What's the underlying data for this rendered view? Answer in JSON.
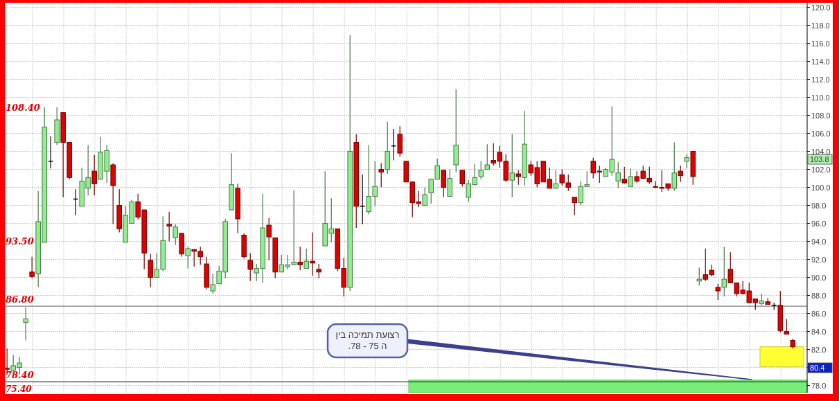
{
  "chart_data": {
    "type": "candlestick",
    "categories": [
      null,
      null,
      null,
      null,
      null,
      null,
      null,
      null,
      null,
      null,
      null,
      null,
      null,
      null,
      null,
      null,
      null,
      null,
      null,
      null,
      null,
      null,
      null,
      null,
      null,
      null,
      null,
      null,
      null,
      null,
      null,
      null,
      null,
      null,
      null,
      null,
      null,
      null,
      null,
      null,
      null,
      null,
      null,
      null,
      null,
      null,
      null,
      null,
      null,
      null,
      null,
      null,
      null,
      null,
      null,
      null,
      null,
      null,
      null,
      null,
      null,
      null,
      null,
      null,
      null,
      null,
      null,
      null,
      null,
      null,
      null,
      null,
      null,
      null,
      null,
      null,
      null,
      null,
      null,
      null,
      null,
      null,
      null,
      null,
      null,
      null,
      null,
      null,
      null,
      null,
      null,
      null,
      null,
      null,
      null,
      null,
      null,
      null,
      null,
      null,
      null,
      null,
      null,
      null,
      null,
      null,
      null,
      null,
      null,
      null,
      null,
      null,
      null,
      null,
      null,
      null,
      null,
      null,
      null,
      null,
      null,
      null,
      null,
      null,
      null,
      null,
      null
    ],
    "ohlc": [
      [
        79.9,
        82.1,
        79.2,
        79.8
      ],
      [
        79.7,
        81.4,
        79.2,
        80.2
      ],
      [
        80.0,
        81.2,
        79.2,
        80.5
      ],
      [
        85.0,
        86.7,
        83.0,
        85.4
      ],
      [
        90.6,
        92.3,
        89.9,
        90.1
      ],
      [
        90.4,
        99.6,
        88.9,
        96.2
      ],
      [
        93.9,
        108.9,
        93.9,
        106.7
      ],
      [
        102.9,
        105.7,
        102.1,
        102.9
      ],
      [
        105.0,
        108.9,
        104.7,
        107.5
      ],
      [
        108.3,
        108.3,
        98.9,
        105.0
      ],
      [
        105.0,
        105.0,
        100.9,
        101.1
      ],
      [
        98.7,
        99.8,
        96.9,
        98.7
      ],
      [
        97.9,
        102.2,
        97.9,
        100.7
      ],
      [
        99.9,
        104.7,
        99.1,
        101.1
      ],
      [
        101.8,
        103.6,
        99.1,
        100.4
      ],
      [
        100.9,
        105.6,
        100.9,
        103.9
      ],
      [
        101.8,
        104.7,
        100.5,
        104.1
      ],
      [
        102.5,
        102.7,
        95.9,
        100.2
      ],
      [
        98.0,
        99.8,
        95.0,
        95.4
      ],
      [
        93.9,
        97.9,
        93.9,
        96.9
      ],
      [
        96.0,
        98.6,
        96.0,
        98.4
      ],
      [
        98.4,
        99.3,
        96.4,
        96.7
      ],
      [
        97.5,
        97.5,
        90.9,
        92.7
      ],
      [
        91.9,
        92.6,
        88.9,
        90.0
      ],
      [
        90.0,
        92.7,
        90.0,
        90.9
      ],
      [
        90.9,
        96.8,
        90.7,
        94.1
      ],
      [
        95.9,
        97.3,
        94.0,
        95.7
      ],
      [
        94.4,
        95.9,
        93.6,
        95.6
      ],
      [
        94.9,
        94.9,
        92.3,
        92.6
      ],
      [
        92.4,
        93.4,
        91.0,
        93.2
      ],
      [
        93.1,
        93.1,
        91.2,
        92.9
      ],
      [
        92.9,
        93.4,
        91.4,
        92.3
      ],
      [
        91.5,
        92.3,
        88.7,
        88.9
      ],
      [
        88.5,
        90.4,
        88.2,
        89.2
      ],
      [
        89.3,
        91.3,
        89.3,
        90.7
      ],
      [
        90.6,
        96.5,
        89.9,
        96.2
      ],
      [
        97.5,
        103.8,
        97.5,
        100.3
      ],
      [
        99.9,
        100.4,
        94.9,
        96.5
      ],
      [
        94.7,
        94.9,
        92.1,
        92.3
      ],
      [
        91.9,
        92.7,
        89.6,
        90.9
      ],
      [
        90.5,
        91.5,
        89.6,
        91.0
      ],
      [
        91.0,
        99.3,
        89.4,
        95.5
      ],
      [
        95.8,
        96.6,
        91.9,
        94.5
      ],
      [
        94.4,
        94.4,
        89.9,
        90.6
      ],
      [
        90.6,
        92.5,
        90.6,
        91.4
      ],
      [
        91.2,
        92.5,
        90.9,
        91.4
      ],
      [
        91.4,
        99.7,
        91.4,
        91.7
      ],
      [
        91.7,
        93.4,
        90.8,
        91.4
      ],
      [
        91.0,
        93.2,
        91.0,
        91.8
      ],
      [
        91.8,
        95.0,
        90.2,
        91.6
      ],
      [
        90.9,
        91.5,
        89.9,
        90.6
      ],
      [
        93.5,
        101.8,
        93.5,
        96.0
      ],
      [
        94.9,
        98.8,
        93.9,
        95.4
      ],
      [
        95.4,
        95.4,
        90.7,
        91.0
      ],
      [
        91.0,
        92.2,
        87.9,
        88.9
      ],
      [
        88.9,
        116.9,
        88.5,
        104.0
      ],
      [
        105.0,
        105.9,
        95.5,
        97.9
      ],
      [
        97.9,
        101.4,
        95.9,
        97.9
      ],
      [
        97.3,
        104.7,
        97.0,
        99.0
      ],
      [
        99.0,
        102.9,
        97.9,
        100.1
      ],
      [
        102.0,
        102.7,
        100.0,
        101.7
      ],
      [
        102.0,
        107.3,
        101.5,
        104.0
      ],
      [
        104.6,
        106.5,
        103.0,
        104.6
      ],
      [
        105.9,
        106.8,
        103.4,
        103.8
      ],
      [
        102.9,
        102.9,
        100.6,
        100.6
      ],
      [
        100.6,
        100.6,
        96.7,
        98.3
      ],
      [
        98.4,
        99.6,
        97.8,
        98.2
      ],
      [
        98.0,
        100.0,
        98.0,
        99.2
      ],
      [
        99.4,
        100.9,
        98.2,
        100.9
      ],
      [
        100.9,
        103.2,
        100.9,
        102.4
      ],
      [
        101.9,
        101.9,
        98.9,
        100.0
      ],
      [
        99.0,
        102.0,
        99.0,
        101.0
      ],
      [
        102.5,
        110.9,
        101.7,
        104.7
      ],
      [
        101.9,
        101.9,
        100.1,
        100.4
      ],
      [
        98.9,
        100.8,
        98.4,
        100.4
      ],
      [
        100.3,
        102.6,
        100.2,
        101.1
      ],
      [
        101.2,
        102.9,
        100.9,
        101.9
      ],
      [
        102.0,
        104.8,
        102.0,
        102.5
      ],
      [
        103.0,
        104.9,
        102.4,
        102.7
      ],
      [
        103.9,
        104.6,
        102.2,
        102.9
      ],
      [
        102.9,
        103.7,
        100.6,
        100.8
      ],
      [
        100.8,
        105.9,
        98.9,
        101.6
      ],
      [
        101.5,
        101.9,
        100.3,
        101.2
      ],
      [
        101.1,
        108.5,
        100.2,
        104.8
      ],
      [
        102.5,
        102.9,
        101.3,
        101.6
      ],
      [
        102.2,
        102.9,
        100.0,
        100.4
      ],
      [
        102.9,
        102.9,
        100.6,
        100.6
      ],
      [
        100.9,
        102.2,
        99.9,
        99.9
      ],
      [
        99.9,
        101.9,
        99.9,
        100.4
      ],
      [
        101.4,
        102.0,
        100.2,
        100.5
      ],
      [
        100.5,
        101.4,
        99.6,
        100.0
      ],
      [
        98.9,
        98.9,
        96.9,
        98.3
      ],
      [
        98.3,
        100.7,
        98.0,
        100.1
      ],
      [
        100.1,
        101.8,
        100.1,
        100.3
      ],
      [
        102.9,
        103.3,
        101.0,
        101.6
      ],
      [
        101.8,
        102.4,
        100.5,
        101.7
      ],
      [
        101.2,
        102.2,
        101.2,
        102.0
      ],
      [
        101.7,
        109.0,
        101.3,
        103.1
      ],
      [
        100.7,
        102.8,
        99.9,
        101.6
      ],
      [
        100.9,
        102.3,
        100.4,
        100.5
      ],
      [
        100.1,
        102.1,
        100.1,
        101.2
      ],
      [
        101.2,
        101.8,
        100.5,
        100.7
      ],
      [
        101.8,
        102.4,
        100.9,
        101.0
      ],
      [
        101.0,
        102.3,
        100.4,
        100.6
      ],
      [
        100.1,
        100.7,
        99.9,
        100.0
      ],
      [
        100.0,
        101.9,
        99.5,
        99.9
      ],
      [
        100.4,
        100.4,
        99.6,
        99.9
      ],
      [
        99.9,
        105.0,
        99.6,
        101.6
      ],
      [
        101.8,
        102.4,
        100.6,
        101.3
      ],
      [
        102.9,
        103.7,
        102.1,
        103.3
      ],
      [
        104.0,
        104.0,
        100.3,
        101.2
      ],
      [
        89.6,
        91.1,
        89.1,
        89.8
      ],
      [
        90.3,
        93.2,
        89.6,
        89.8
      ],
      [
        90.8,
        91.4,
        90.1,
        90.3
      ],
      [
        88.9,
        89.3,
        87.5,
        88.5
      ],
      [
        88.9,
        93.4,
        87.9,
        89.8
      ],
      [
        90.9,
        92.8,
        89.4,
        89.4
      ],
      [
        89.4,
        89.4,
        87.9,
        88.2
      ],
      [
        88.6,
        89.6,
        88.1,
        88.2
      ],
      [
        88.5,
        89.4,
        87.1,
        87.2
      ],
      [
        87.6,
        87.6,
        86.4,
        87.2
      ],
      [
        87.1,
        88.2,
        86.9,
        87.4
      ],
      [
        87.3,
        87.7,
        87.0,
        87.0
      ],
      [
        86.9,
        87.2,
        86.4,
        86.9
      ],
      [
        86.9,
        88.5,
        83.9,
        84.1
      ],
      [
        84.0,
        85.4,
        83.7,
        83.7
      ],
      [
        83.0,
        83.2,
        82.1,
        82.3
      ]
    ],
    "colors": [
      "#e00000",
      "#90ee90",
      "#90ee90",
      "#90ee90",
      "#e00000",
      "#90ee90",
      "#90ee90",
      "#000000",
      "#90ee90",
      "#e00000",
      "#e00000",
      "#000000",
      "#90ee90",
      "#90ee90",
      "#e00000",
      "#90ee90",
      "#90ee90",
      "#e00000",
      "#e00000",
      "#90ee90",
      "#90ee90",
      "#e00000",
      "#e00000",
      "#e00000",
      "#90ee90",
      "#90ee90",
      "#e00000",
      "#90ee90",
      "#e00000",
      "#90ee90",
      "#e00000",
      "#e00000",
      "#e00000",
      "#90ee90",
      "#90ee90",
      "#90ee90",
      "#90ee90",
      "#e00000",
      "#e00000",
      "#e00000",
      "#90ee90",
      "#90ee90",
      "#e00000",
      "#e00000",
      "#90ee90",
      "#90ee90",
      "#90ee90",
      "#e00000",
      "#90ee90",
      "#e00000",
      "#e00000",
      "#90ee90",
      "#90ee90",
      "#e00000",
      "#e00000",
      "#90ee90",
      "#e00000",
      "#000000",
      "#90ee90",
      "#90ee90",
      "#e00000",
      "#90ee90",
      "#000000",
      "#e00000",
      "#e00000",
      "#e00000",
      "#e00000",
      "#90ee90",
      "#90ee90",
      "#90ee90",
      "#e00000",
      "#90ee90",
      "#90ee90",
      "#e00000",
      "#90ee90",
      "#90ee90",
      "#90ee90",
      "#90ee90",
      "#e00000",
      "#e00000",
      "#e00000",
      "#90ee90",
      "#e00000",
      "#90ee90",
      "#e00000",
      "#e00000",
      "#e00000",
      "#e00000",
      "#90ee90",
      "#e00000",
      "#e00000",
      "#e00000",
      "#90ee90",
      "#90ee90",
      "#e00000",
      "#e00000",
      "#90ee90",
      "#90ee90",
      "#90ee90",
      "#e00000",
      "#90ee90",
      "#e00000",
      "#e00000",
      "#e00000",
      "#e00000",
      "#e00000",
      "#e00000",
      "#90ee90",
      "#e00000",
      "#90ee90",
      "#e00000",
      "#90ee90",
      "#e00000",
      "#e00000",
      "#e00000",
      "#90ee90",
      "#e00000",
      "#e00000",
      "#e00000",
      "#e00000",
      "#e00000",
      "#90ee90",
      "#e00000",
      "#000000",
      "#e00000",
      "#e00000",
      "#e00000"
    ],
    "ylim": [
      77.2,
      120.5
    ],
    "yticks": [
      {
        "value": 78,
        "label": "78.0"
      },
      {
        "value": 80,
        "label": null
      },
      {
        "value": 82,
        "label": "82.0"
      },
      {
        "value": 84,
        "label": "84.0"
      },
      {
        "value": 86,
        "label": "86.0"
      },
      {
        "value": 88,
        "label": "88.0"
      },
      {
        "value": 90,
        "label": "90.0"
      },
      {
        "value": 92,
        "label": "92.0"
      },
      {
        "value": 94,
        "label": "94.0"
      },
      {
        "value": 96,
        "label": "96.0"
      },
      {
        "value": 98,
        "label": "98.0"
      },
      {
        "value": 100,
        "label": "100.0"
      },
      {
        "value": 102,
        "label": "102.0"
      },
      {
        "value": 104,
        "label": "104.0"
      },
      {
        "value": 106,
        "label": "106.0"
      },
      {
        "value": 108,
        "label": "108.0"
      },
      {
        "value": 110,
        "label": "110.0"
      },
      {
        "value": 112,
        "label": "112.0"
      },
      {
        "value": 114,
        "label": "114.0"
      },
      {
        "value": 116,
        "label": "116.0"
      },
      {
        "value": 118,
        "label": "118.0"
      },
      {
        "value": 120,
        "label": "120.0"
      }
    ],
    "tick_labels": "y",
    "grid": true,
    "ref_lines": [
      {
        "axis": "y",
        "value": 86.8,
        "label": "86.80",
        "color": "#808080",
        "line_style": "solid"
      },
      {
        "axis": "y",
        "value": 78.4,
        "label": "78.40",
        "color": "#333333",
        "line_style": "solid"
      }
    ],
    "bands": [
      {
        "axis": "y",
        "from": 77.2,
        "to": 78.6,
        "color": "#77ee77"
      },
      {
        "axis": "y",
        "from": 80.1,
        "to": 82.3,
        "color": "#ffff33"
      }
    ],
    "annotations": [
      "רצועת תמיכה  בין\nה 75 - 78.",
      "103.8",
      "80.4",
      "75.40",
      "108.40",
      "93.50"
    ]
  }
}
